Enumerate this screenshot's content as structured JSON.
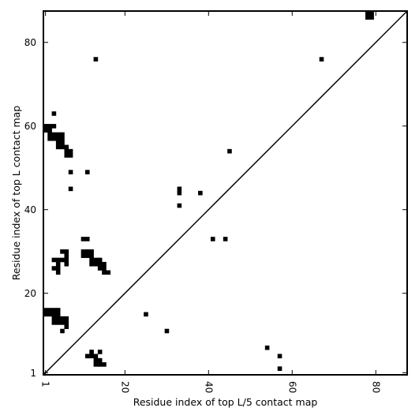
{
  "chart_data": {
    "type": "heatmap",
    "title": "",
    "xlabel": "Residue index of top L/5 contact map",
    "ylabel": "Residue index of top L contact map",
    "xlim": [
      0.5,
      87.5
    ],
    "ylim": [
      0.5,
      87.5
    ],
    "xticks": [
      1,
      20,
      40,
      60,
      80
    ],
    "yticks": [
      1,
      20,
      40,
      60,
      80
    ],
    "xtick_labels": [
      "1",
      "20",
      "40",
      "60",
      "80"
    ],
    "ytick_labels": [
      "1",
      "20",
      "40",
      "60",
      "80"
    ],
    "diagonal": true,
    "grid": false,
    "color": "#000000",
    "upper_contacts": [
      [
        78,
        87
      ],
      [
        79,
        87
      ],
      [
        79,
        86
      ],
      [
        78,
        86
      ],
      [
        13,
        76
      ],
      [
        67,
        76
      ],
      [
        3,
        63
      ],
      [
        1,
        60
      ],
      [
        2,
        60
      ],
      [
        3,
        60
      ],
      [
        1,
        59
      ],
      [
        2,
        59
      ],
      [
        2,
        58
      ],
      [
        3,
        58
      ],
      [
        4,
        58
      ],
      [
        5,
        58
      ],
      [
        2,
        57
      ],
      [
        3,
        57
      ],
      [
        4,
        57
      ],
      [
        5,
        57
      ],
      [
        4,
        56
      ],
      [
        5,
        56
      ],
      [
        4,
        55
      ],
      [
        5,
        55
      ],
      [
        6,
        55
      ],
      [
        6,
        54
      ],
      [
        7,
        54
      ],
      [
        6,
        53
      ],
      [
        7,
        53
      ],
      [
        45,
        54
      ],
      [
        7,
        49
      ],
      [
        11,
        49
      ],
      [
        7,
        45
      ],
      [
        33,
        45
      ],
      [
        33,
        44
      ],
      [
        38,
        44
      ],
      [
        33,
        41
      ],
      [
        10,
        33
      ],
      [
        11,
        33
      ],
      [
        41,
        33
      ],
      [
        44,
        33
      ]
    ],
    "lower_contacts": [
      [
        5,
        30
      ],
      [
        6,
        30
      ],
      [
        10,
        30
      ],
      [
        11,
        30
      ],
      [
        12,
        30
      ],
      [
        6,
        29
      ],
      [
        10,
        29
      ],
      [
        11,
        29
      ],
      [
        12,
        29
      ],
      [
        3,
        28
      ],
      [
        4,
        28
      ],
      [
        5,
        28
      ],
      [
        6,
        28
      ],
      [
        12,
        28
      ],
      [
        13,
        28
      ],
      [
        14,
        28
      ],
      [
        4,
        27
      ],
      [
        6,
        27
      ],
      [
        12,
        27
      ],
      [
        13,
        27
      ],
      [
        14,
        27
      ],
      [
        15,
        27
      ],
      [
        3,
        26
      ],
      [
        4,
        26
      ],
      [
        14,
        26
      ],
      [
        15,
        26
      ],
      [
        4,
        25
      ],
      [
        15,
        25
      ],
      [
        16,
        25
      ],
      [
        1,
        16
      ],
      [
        2,
        16
      ],
      [
        3,
        16
      ],
      [
        4,
        16
      ],
      [
        1,
        15
      ],
      [
        2,
        15
      ],
      [
        3,
        15
      ],
      [
        4,
        15
      ],
      [
        3,
        14
      ],
      [
        4,
        14
      ],
      [
        5,
        14
      ],
      [
        6,
        14
      ],
      [
        3,
        13
      ],
      [
        4,
        13
      ],
      [
        5,
        13
      ],
      [
        6,
        13
      ],
      [
        6,
        12
      ],
      [
        5,
        11
      ],
      [
        25,
        15
      ],
      [
        30,
        11
      ],
      [
        12,
        6
      ],
      [
        14,
        6
      ],
      [
        11,
        5
      ],
      [
        12,
        5
      ],
      [
        13,
        5
      ],
      [
        13,
        4
      ],
      [
        14,
        4
      ],
      [
        13,
        3
      ],
      [
        14,
        3
      ],
      [
        15,
        3
      ],
      [
        54,
        7
      ],
      [
        57,
        5
      ],
      [
        57,
        2
      ]
    ]
  }
}
